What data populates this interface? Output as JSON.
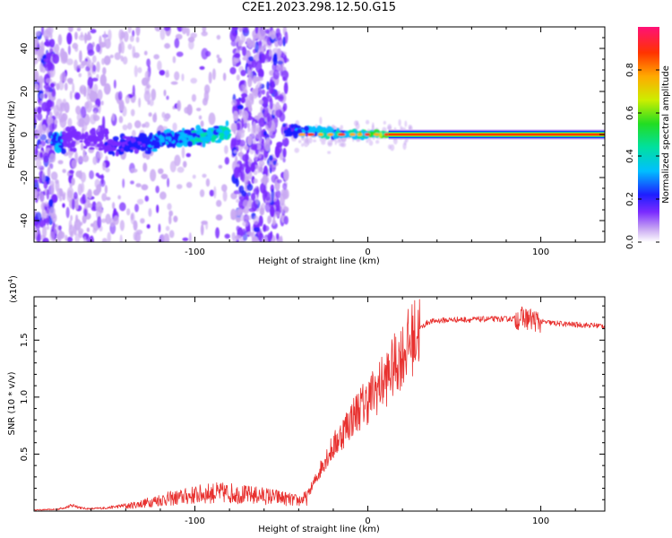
{
  "title": "C2E1.2023.298.12.50.G15",
  "colors": {
    "snr_line": "#e8312f",
    "background": "#ffffff"
  },
  "chart_data": [
    {
      "type": "heatmap",
      "xlabel": "Height of straight line (km)",
      "ylabel": "Frequency (Hz)",
      "xlim": [
        -193,
        137
      ],
      "ylim": [
        -50,
        50
      ],
      "xticks": [
        -100,
        0,
        100
      ],
      "yticks": [
        -40,
        -20,
        0,
        20,
        40
      ],
      "colorbar": {
        "label": "Normalized spectral amplitude",
        "range": [
          0,
          1
        ],
        "ticks": [
          "0.0",
          "0.2",
          "0.4",
          "0.6",
          "0.8"
        ],
        "colors": [
          "#ffffff",
          "#c9a9f2",
          "#7a2bff",
          "#1e1eff",
          "#00bfff",
          "#00e0a0",
          "#22dd22",
          "#ccee00",
          "#ffaa00",
          "#ff3300",
          "#ff1177"
        ]
      },
      "regions": [
        {
          "x": [
            -193,
            -180
          ],
          "content": "broadband noise"
        },
        {
          "x": [
            -180,
            -150
          ],
          "content": "weak signal near 0 Hz"
        },
        {
          "x": [
            -150,
            -80
          ],
          "content": "signal near 0 Hz with scattered noise"
        },
        {
          "x": [
            -78,
            -47
          ],
          "content": "broadband noise"
        },
        {
          "x": [
            -45,
            15
          ],
          "content": "strengthening signal near 0 Hz"
        },
        {
          "x": [
            15,
            137
          ],
          "content": "strong signal at 0 Hz"
        }
      ]
    },
    {
      "type": "line",
      "xlabel": "Height of straight line (km)",
      "ylabel": "SNR (10 * v/v)",
      "yscale_label": "(x10",
      "yscale_exp": "4",
      "xlim": [
        -193,
        137
      ],
      "ylim": [
        0,
        18800
      ],
      "xticks": [
        -100,
        0,
        100
      ],
      "yticks": [
        "0.5",
        "1.0",
        "1.5"
      ],
      "ytick_values": [
        5000,
        10000,
        15000
      ],
      "series": [
        {
          "x": [
            -193,
            -180,
            -170,
            -165,
            -160,
            -150,
            -140,
            -130,
            -120,
            -110,
            -100,
            -90,
            -80,
            -70,
            -60,
            -50,
            -45,
            -40,
            -35,
            -30,
            -25,
            -20,
            -15,
            -10,
            -5,
            0,
            5,
            10,
            15,
            20,
            25,
            30,
            35,
            40,
            50,
            60,
            70,
            80,
            85,
            90,
            95,
            100,
            110,
            120,
            137
          ],
          "y": [
            100,
            150,
            500,
            250,
            200,
            300,
            500,
            800,
            1200,
            1400,
            1700,
            1900,
            1900,
            1700,
            1600,
            1400,
            1200,
            1100,
            1400,
            2800,
            4500,
            5600,
            6800,
            8000,
            9000,
            9700,
            10700,
            11500,
            12700,
            13800,
            15000,
            16000,
            16600,
            16700,
            16800,
            16800,
            16850,
            16850,
            16900,
            16950,
            16800,
            16600,
            16450,
            16350,
            16250
          ]
        }
      ]
    }
  ]
}
